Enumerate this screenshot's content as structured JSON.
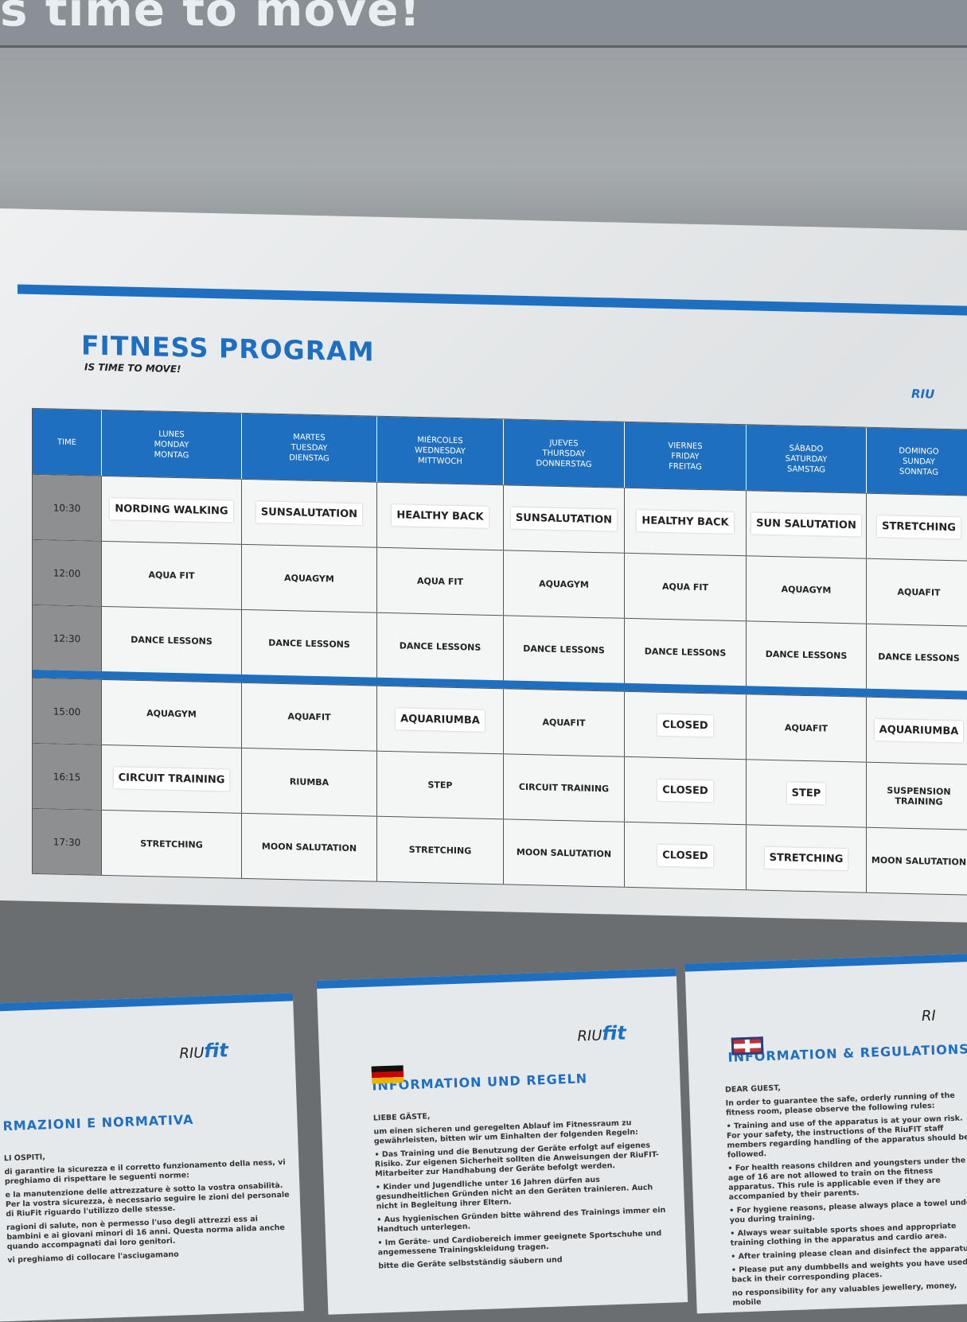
{
  "banner_text": "s time to move!",
  "poster": {
    "title": "FITNESS PROGRAM",
    "subtitle": "IS TIME TO MOVE!",
    "brand": "RIU"
  },
  "colors": {
    "brand_blue": "#1f6fc0",
    "time_column": "#8d8f90"
  },
  "table": {
    "headers": [
      "TIME",
      "LUNES\nMONDAY\nMONTAG",
      "MARTES\nTUESDAY\nDIENSTAG",
      "MIÉRCOLES\nWEDNESDAY\nMITTWOCH",
      "JUEVES\nTHURSDAY\nDONNERSTAG",
      "VIERNES\nFRIDAY\nFREITAG",
      "SÁBADO\nSATURDAY\nSAMSTAG",
      "DOMINGO\nSUNDAY\nSONNTAG"
    ],
    "rows": [
      {
        "time": "10:30",
        "cells": [
          "NORDING WALKING",
          "SUNSALUTATION",
          "HEALTHY BACK",
          "SUNSALUTATION",
          "HEALTHY BACK",
          "SUN SALUTATION",
          "STRETCHING"
        ]
      },
      {
        "time": "12:00",
        "cells": [
          "AQUA FIT",
          "AQUAGYM",
          "AQUA FIT",
          "AQUAGYM",
          "AQUA FIT",
          "AQUAGYM",
          "AQUAFIT"
        ]
      },
      {
        "time": "12:30",
        "cells": [
          "DANCE LESSONS",
          "DANCE LESSONS",
          "DANCE LESSONS",
          "DANCE LESSONS",
          "DANCE LESSONS",
          "DANCE LESSONS",
          "DANCE LESSONS"
        ]
      },
      {
        "time": "15:00",
        "cells": [
          "AQUAGYM",
          "AQUAFIT",
          "AQUARIUMBA",
          "AQUAFIT",
          "CLOSED",
          "AQUAFIT",
          "AQUARIUMBA"
        ]
      },
      {
        "time": "16:15",
        "cells": [
          "CIRCUIT TRAINING",
          "RIUMBA",
          "STEP",
          "CIRCUIT TRAINING",
          "CLOSED",
          "STEP",
          "SUSPENSION TRAINING"
        ]
      },
      {
        "time": "17:30",
        "cells": [
          "STRETCHING",
          "MOON SALUTATION",
          "STRETCHING",
          "MOON SALUTATION",
          "CLOSED",
          "STRETCHING",
          "MOON SALUTATION"
        ]
      }
    ]
  },
  "notices": [
    {
      "title": "RMAZIONI E NORMATIVA",
      "logo_a": "RIU",
      "logo_b": "fit",
      "body": [
        "LI OSPITI,",
        "di garantire la sicurezza e il corretto funzionamento della ness, vi preghiamo di rispettare le seguenti norme:",
        "e la manutenzione delle attrezzature è sotto la vostra onsabilità. Per la vostra sicurezza, è necessario seguire le zioni del personale di RiuFit riguardo l'utilizzo delle stesse.",
        "ragioni di salute, non è permesso l'uso degli attrezzi ess ai bambini e ai giovani minori di 16 anni. Questa norma alida anche quando accompagnati dai loro genitori.",
        "vi preghiamo di collocare l'asciugamano"
      ]
    },
    {
      "title": "INFORMATION UND REGELN",
      "logo_a": "RIU",
      "logo_b": "fit",
      "body": [
        "LIEBE GÄSTE,",
        "um einen sicheren und geregelten Ablauf im Fitnessraum zu gewährleisten, bitten wir um Einhalten der folgenden Regeln:",
        "• Das Training und die Benutzung der Geräte erfolgt auf eigenes Risiko. Zur eigenen Sicherheit sollten die Anweisungen der RiuFIT- Mitarbeiter zur Handhabung der Geräte befolgt werden.",
        "• Kinder und Jugendliche unter 16 Jahren dürfen aus gesundheitlichen Gründen nicht an den Geräten trainieren. Auch nicht in Begleitung ihrer Eltern.",
        "• Aus hygienischen Gründen bitte während des Trainings immer ein Handtuch unterlegen.",
        "• Im Geräte- und Cardiobereich immer geeignete Sportschuhe und angemessene Trainingskleidung tragen.",
        "bitte die Geräte selbstständig säubern und"
      ]
    },
    {
      "title": "INFORMATION & REGULATIONS",
      "logo_a": "RI",
      "logo_b": "",
      "body": [
        "DEAR GUEST,",
        "In order to guarantee the safe, orderly running of the fitness room, please observe the following rules:",
        "• Training and use of the apparatus is at your own risk. For your safety, the instructions of the RiuFIT staff members regarding handling of the apparatus should be followed.",
        "• For health reasons children and youngsters under the age of 16 are not allowed to train on the fitness apparatus. This rule is applicable even if they are accompanied by their parents.",
        "• For hygiene reasons, please always place a towel under you during training.",
        "• Always wear suitable sports shoes and appropriate training clothing in the apparatus and cardio area.",
        "• After training please clean and disinfect the apparatus.",
        "• Please put any dumbbells and weights you have used back in their corresponding places.",
        "no responsibility for any valuables jewellery, money, mobile"
      ]
    }
  ]
}
